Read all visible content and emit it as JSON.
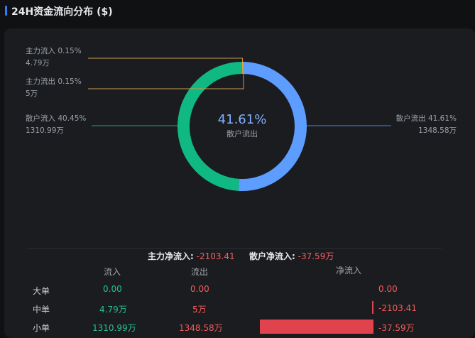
{
  "header": {
    "title": "24H资金流向分布 ($)"
  },
  "colors": {
    "green": "#10b981",
    "blue": "#5c9dff",
    "orange": "#e8a33d",
    "red": "#e0434d"
  },
  "chart_data": {
    "type": "pie",
    "center": {
      "value": "41.61%",
      "label": "散户流出"
    },
    "slices": [
      {
        "name": "主力流入",
        "percent": 0.15,
        "percent_label": "0.15%",
        "amount": "4.79万",
        "color": "#e8a33d"
      },
      {
        "name": "主力流出",
        "percent": 0.15,
        "percent_label": "0.15%",
        "amount": "5万",
        "color": "#e8a33d"
      },
      {
        "name": "散户流入",
        "percent": 40.45,
        "percent_label": "40.45%",
        "amount": "1310.99万",
        "color": "#10b981"
      },
      {
        "name": "散户流出",
        "percent": 41.61,
        "percent_label": "41.61%",
        "amount": "1348.58万",
        "color": "#5c9dff"
      }
    ]
  },
  "summary": {
    "main_label": "主力净流入:",
    "main_value": "-2103.41",
    "retail_label": "散户净流入:",
    "retail_value": "-37.59万"
  },
  "table": {
    "headers": [
      "流入",
      "流出",
      "净流入"
    ],
    "rows": [
      {
        "label": "大单",
        "inflow": "0.00",
        "outflow": "0.00",
        "net": "0.00",
        "net_fraction": 0
      },
      {
        "label": "中单",
        "inflow": "4.79万",
        "outflow": "5万",
        "net": "-2103.41",
        "net_fraction": 0.01
      },
      {
        "label": "小单",
        "inflow": "1310.99万",
        "outflow": "1348.58万",
        "net": "-37.59万",
        "net_fraction": 1
      }
    ]
  }
}
